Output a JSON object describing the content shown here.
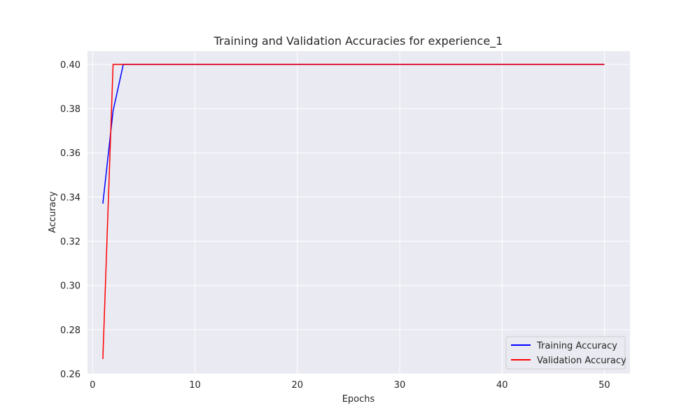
{
  "chart_data": {
    "type": "line",
    "title": "Training and Validation Accuracies for experience_1",
    "xlabel": "Epochs",
    "ylabel": "Accuracy",
    "xlim": [
      -0.5,
      52.5
    ],
    "ylim": [
      0.26,
      0.406
    ],
    "xticks": [
      0,
      10,
      20,
      30,
      40,
      50
    ],
    "yticks": [
      0.26,
      0.28,
      0.3,
      0.32,
      0.34,
      0.36,
      0.38,
      0.4
    ],
    "ytick_labels": [
      "0.26",
      "0.28",
      "0.30",
      "0.32",
      "0.34",
      "0.36",
      "0.38",
      "0.40"
    ],
    "grid": true,
    "legend_position": "lower-right",
    "background": "#eaeaf2",
    "series": [
      {
        "name": "Training Accuracy",
        "color": "#0000ff",
        "x": [
          1,
          2,
          3,
          4,
          5,
          6,
          7,
          8,
          9,
          10,
          11,
          12,
          13,
          14,
          15,
          16,
          17,
          18,
          19,
          20,
          21,
          22,
          23,
          24,
          25,
          26,
          27,
          28,
          29,
          30,
          31,
          32,
          33,
          34,
          35,
          36,
          37,
          38,
          39,
          40,
          41,
          42,
          43,
          44,
          45,
          46,
          47,
          48,
          49,
          50
        ],
        "y": [
          0.337,
          0.379,
          0.4,
          0.4,
          0.4,
          0.4,
          0.4,
          0.4,
          0.4,
          0.4,
          0.4,
          0.4,
          0.4,
          0.4,
          0.4,
          0.4,
          0.4,
          0.4,
          0.4,
          0.4,
          0.4,
          0.4,
          0.4,
          0.4,
          0.4,
          0.4,
          0.4,
          0.4,
          0.4,
          0.4,
          0.4,
          0.4,
          0.4,
          0.4,
          0.4,
          0.4,
          0.4,
          0.4,
          0.4,
          0.4,
          0.4,
          0.4,
          0.4,
          0.4,
          0.4,
          0.4,
          0.4,
          0.4,
          0.4,
          0.4
        ]
      },
      {
        "name": "Validation Accuracy",
        "color": "#ff0000",
        "x": [
          1,
          2,
          3,
          4,
          5,
          6,
          7,
          8,
          9,
          10,
          11,
          12,
          13,
          14,
          15,
          16,
          17,
          18,
          19,
          20,
          21,
          22,
          23,
          24,
          25,
          26,
          27,
          28,
          29,
          30,
          31,
          32,
          33,
          34,
          35,
          36,
          37,
          38,
          39,
          40,
          41,
          42,
          43,
          44,
          45,
          46,
          47,
          48,
          49,
          50
        ],
        "y": [
          0.2667,
          0.4,
          0.4,
          0.4,
          0.4,
          0.4,
          0.4,
          0.4,
          0.4,
          0.4,
          0.4,
          0.4,
          0.4,
          0.4,
          0.4,
          0.4,
          0.4,
          0.4,
          0.4,
          0.4,
          0.4,
          0.4,
          0.4,
          0.4,
          0.4,
          0.4,
          0.4,
          0.4,
          0.4,
          0.4,
          0.4,
          0.4,
          0.4,
          0.4,
          0.4,
          0.4,
          0.4,
          0.4,
          0.4,
          0.4,
          0.4,
          0.4,
          0.4,
          0.4,
          0.4,
          0.4,
          0.4,
          0.4,
          0.4,
          0.4
        ]
      }
    ]
  }
}
